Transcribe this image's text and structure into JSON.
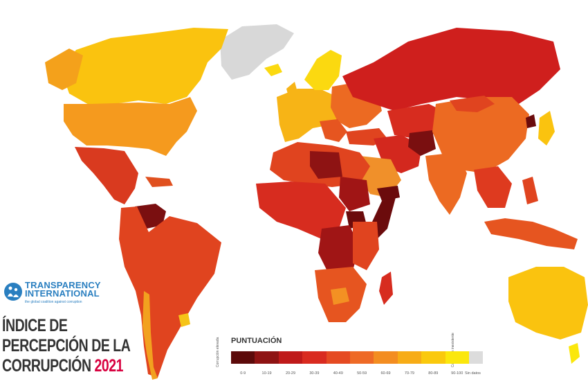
{
  "branding": {
    "org_name": "TRANSPARENCY INTERNATIONAL",
    "tagline": "the global coalition against corruption"
  },
  "title": {
    "line1": "ÍNDICE DE",
    "line2": "PERCEPCIÓN DE LA",
    "line3": "CORRUPCIÓN",
    "year": "2021"
  },
  "legend": {
    "title": "PUNTUACIÓN",
    "low_end_label": "Corrupción elevada",
    "high_end_label": "Corrupción inexistente",
    "bins": [
      {
        "label": "0-9",
        "color": "#5c0a0a"
      },
      {
        "label": "10-19",
        "color": "#8e1313"
      },
      {
        "label": "20-29",
        "color": "#bf1a1a"
      },
      {
        "label": "30-39",
        "color": "#d92b20"
      },
      {
        "label": "40-49",
        "color": "#e54a22"
      },
      {
        "label": "50-59",
        "color": "#ee6a26"
      },
      {
        "label": "60-69",
        "color": "#f38d21"
      },
      {
        "label": "70-79",
        "color": "#f7ac16"
      },
      {
        "label": "80-89",
        "color": "#fac90d"
      },
      {
        "label": "90-100",
        "color": "#fbe70c"
      }
    ],
    "no_data": {
      "label": "Sin datos",
      "color": "#dcdcdc"
    }
  }
}
